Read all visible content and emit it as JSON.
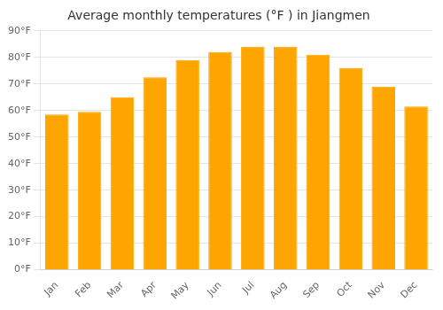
{
  "chart_data": {
    "type": "bar",
    "title": "Average monthly temperatures (°F ) in Jiangmen",
    "categories": [
      "Jan",
      "Feb",
      "Mar",
      "Apr",
      "May",
      "Jun",
      "Jul",
      "Aug",
      "Sep",
      "Oct",
      "Nov",
      "Dec"
    ],
    "values": [
      58.5,
      59.5,
      65.0,
      72.5,
      79.0,
      82.0,
      84.0,
      84.0,
      81.0,
      76.0,
      69.0,
      61.5
    ],
    "color": "#FFA500",
    "ylim": [
      0,
      90
    ],
    "yticks": [
      {
        "value": 0,
        "label": "0°F"
      },
      {
        "value": 10,
        "label": "10°F"
      },
      {
        "value": 20,
        "label": "20°F"
      },
      {
        "value": 30,
        "label": "30°F"
      },
      {
        "value": 40,
        "label": "40°F"
      },
      {
        "value": 50,
        "label": "50°F"
      },
      {
        "value": 60,
        "label": "60°F"
      },
      {
        "value": 70,
        "label": "70°F"
      },
      {
        "value": 80,
        "label": "80°F"
      },
      {
        "value": 90,
        "label": "90°F"
      }
    ],
    "grid": true
  }
}
